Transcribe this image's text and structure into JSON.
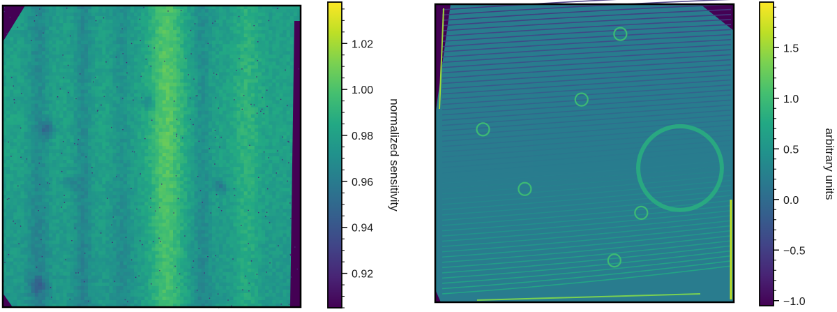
{
  "chart_data": [
    {
      "type": "heatmap",
      "title": "",
      "xlabel": "",
      "ylabel": "",
      "colormap": "viridis",
      "colorbar": {
        "label": "normalized sensitivity",
        "range": [
          0.905,
          1.038
        ],
        "major_ticks": [
          0.92,
          0.94,
          0.96,
          0.98,
          1.0,
          1.02
        ],
        "tick_labels": [
          "0.92",
          "0.94",
          "0.96",
          "0.98",
          "1.00",
          "1.02"
        ],
        "minor_step": 0.005
      },
      "features": {
        "background_level": 0.975,
        "vertical_bands": [
          {
            "center": 0.12,
            "width": 0.05,
            "delta": -0.012
          },
          {
            "center": 0.27,
            "width": 0.04,
            "delta": -0.012
          },
          {
            "center": 0.4,
            "width": 0.05,
            "delta": -0.008
          },
          {
            "center": 0.55,
            "width": 0.08,
            "delta": 0.022
          },
          {
            "center": 0.67,
            "width": 0.04,
            "delta": -0.01
          },
          {
            "center": 0.82,
            "width": 0.06,
            "delta": 0.01
          }
        ],
        "spots": [
          {
            "x": 0.15,
            "y": 0.41,
            "r": 0.025,
            "delta": -0.025
          },
          {
            "x": 0.49,
            "y": 0.32,
            "r": 0.022,
            "delta": -0.018
          },
          {
            "x": 0.73,
            "y": 0.6,
            "r": 0.022,
            "delta": -0.02
          },
          {
            "x": 0.23,
            "y": 0.59,
            "r": 0.025,
            "delta": -0.014
          },
          {
            "x": 0.12,
            "y": 0.93,
            "r": 0.03,
            "delta": -0.018
          }
        ]
      }
    },
    {
      "type": "heatmap",
      "title": "",
      "xlabel": "",
      "ylabel": "",
      "colormap": "viridis",
      "colorbar": {
        "label": "arbitrary units",
        "range": [
          -1.05,
          1.95
        ],
        "major_ticks": [
          -1.0,
          -0.5,
          0.0,
          0.5,
          1.0,
          1.5
        ],
        "tick_labels": [
          "−1.0",
          "−0.5",
          "0.0",
          "0.5",
          "1.0",
          "1.5"
        ],
        "minor_step": 0.1
      },
      "features": {
        "background_level": 0.2,
        "stripe_count": 55,
        "large_ring": {
          "x": 0.82,
          "y": 0.55,
          "r": 0.14
        },
        "small_rings": [
          {
            "x": 0.16,
            "y": 0.42
          },
          {
            "x": 0.49,
            "y": 0.32
          },
          {
            "x": 0.3,
            "y": 0.62
          },
          {
            "x": 0.6,
            "y": 0.86
          },
          {
            "x": 0.69,
            "y": 0.7
          },
          {
            "x": 0.62,
            "y": 0.1
          }
        ]
      }
    }
  ]
}
